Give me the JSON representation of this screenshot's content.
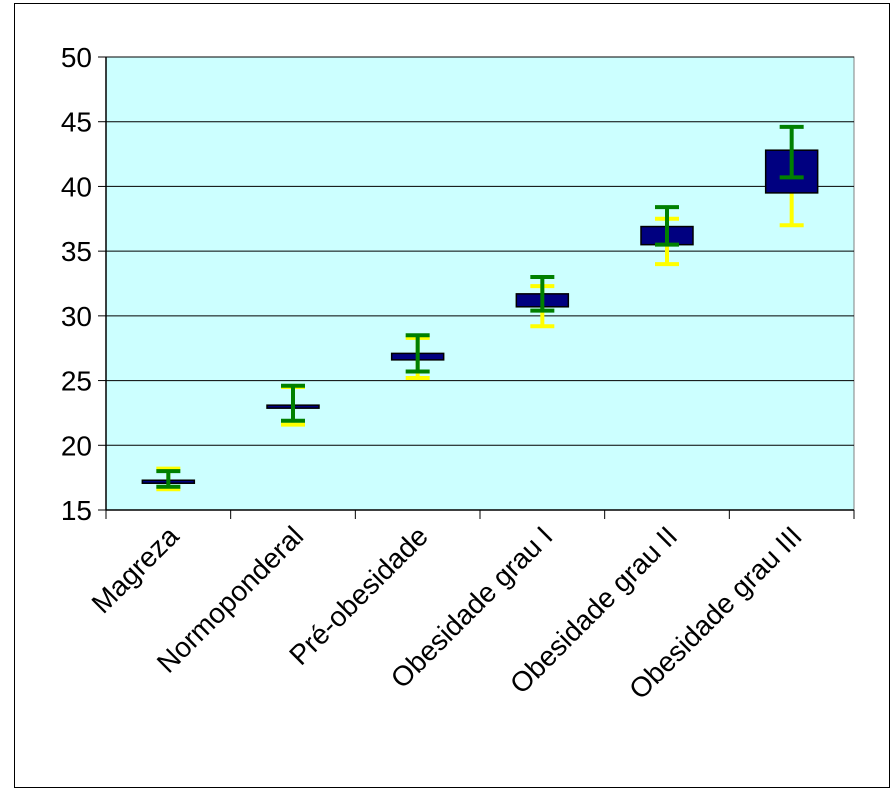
{
  "chart_data": {
    "type": "stock",
    "title": "",
    "xlabel": "",
    "ylabel": "",
    "ylim": [
      15,
      50
    ],
    "yticks": [
      15,
      20,
      25,
      30,
      35,
      40,
      45,
      50
    ],
    "grid": true,
    "legend": "none",
    "categories": [
      "Magreza",
      "Normoponderal",
      "Pré-obesidade",
      "Obesidade grau I",
      "Obesidade grau II",
      "Obesidade grau III"
    ],
    "boxes": [
      {
        "low": 17.1,
        "high": 17.3
      },
      {
        "low": 23.0,
        "high": 23.1
      },
      {
        "low": 26.6,
        "high": 27.1
      },
      {
        "low": 30.7,
        "high": 31.7
      },
      {
        "low": 35.5,
        "high": 36.9
      },
      {
        "low": 39.5,
        "high": 42.8
      }
    ],
    "yellow_whiskers": [
      {
        "low": 16.6,
        "high": 18.2
      },
      {
        "low": 21.6,
        "high": 24.5
      },
      {
        "low": 25.2,
        "high": 28.3
      },
      {
        "low": 29.2,
        "high": 32.3
      },
      {
        "low": 34.0,
        "high": 37.5
      },
      {
        "low": 37.0,
        "high": 42.0
      }
    ],
    "green_whiskers": [
      {
        "low": 16.8,
        "high": 18.0
      },
      {
        "low": 21.9,
        "high": 24.6
      },
      {
        "low": 25.7,
        "high": 28.5
      },
      {
        "low": 30.4,
        "high": 33.0
      },
      {
        "low": 35.5,
        "high": 38.4
      },
      {
        "low": 40.7,
        "high": 44.6
      }
    ],
    "colors": {
      "plot_background": "#ccffff",
      "box_fill": "#000080",
      "yellow": "#ffff00",
      "green": "#008000",
      "gridline": "#000000"
    }
  }
}
